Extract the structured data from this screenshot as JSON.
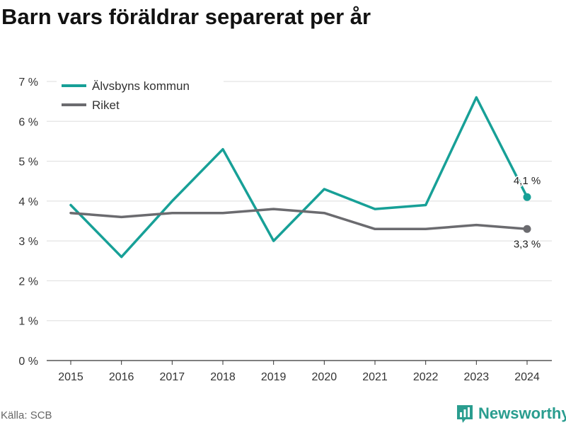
{
  "title": "Barn vars föräldrar separerat per år",
  "source": "Källa: SCB",
  "brand": {
    "name": "Newsworthy",
    "icon": "newsworthy-logo-icon",
    "color": "#2a9d8f"
  },
  "chart_data": {
    "type": "line",
    "title": "Barn vars föräldrar separerat per år",
    "xlabel": "",
    "ylabel": "",
    "x": [
      2015,
      2016,
      2017,
      2018,
      2019,
      2020,
      2021,
      2022,
      2023,
      2024
    ],
    "x_tick_labels": [
      "2015",
      "2016",
      "2017",
      "2018",
      "2019",
      "2020",
      "2021",
      "2022",
      "2023",
      "2024"
    ],
    "ylim": [
      0,
      7
    ],
    "y_ticks": [
      0,
      1,
      2,
      3,
      4,
      5,
      6,
      7
    ],
    "y_tick_labels": [
      "0 %",
      "1 %",
      "2 %",
      "3 %",
      "4 %",
      "5 %",
      "6 %",
      "7 %"
    ],
    "grid": true,
    "legend_position": "top-left",
    "series": [
      {
        "name": "Älvsbyns kommun",
        "color": "#17a097",
        "values": [
          3.9,
          2.6,
          4.0,
          5.3,
          3.0,
          4.3,
          3.8,
          3.9,
          6.6,
          4.1
        ],
        "end_label": "4,1 %"
      },
      {
        "name": "Riket",
        "color": "#6b6b6f",
        "values": [
          3.7,
          3.6,
          3.7,
          3.7,
          3.8,
          3.7,
          3.3,
          3.3,
          3.4,
          3.3
        ],
        "end_label": "3,3 %"
      }
    ]
  }
}
